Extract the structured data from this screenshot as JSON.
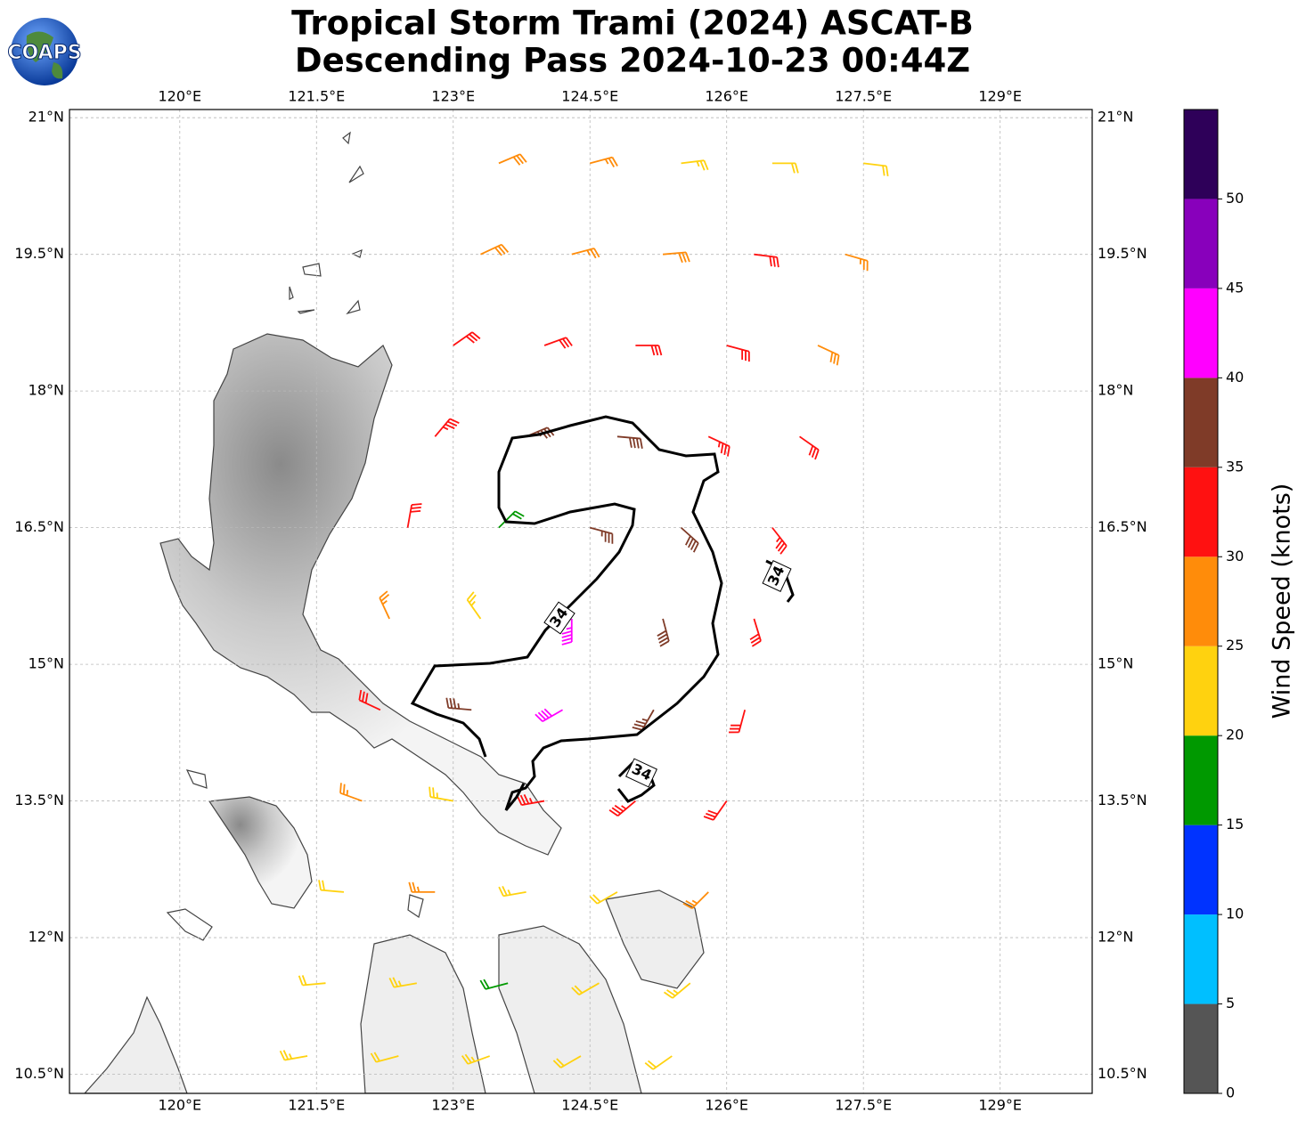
{
  "chart_data": {
    "type": "wind_barbs",
    "title": "Tropical Storm Trami (2024) ASCAT-B",
    "subtitle": "Descending Pass 2024-10-23 00:44Z",
    "logo": "COAPS",
    "xlim": [
      118.79,
      130.01
    ],
    "ylim": [
      10.29,
      21.09
    ],
    "xticks": [
      {
        "value": 120,
        "label": "120°E"
      },
      {
        "value": 121.5,
        "label": "121.5°E"
      },
      {
        "value": 123,
        "label": "123°E"
      },
      {
        "value": 124.5,
        "label": "124.5°E"
      },
      {
        "value": 126,
        "label": "126°E"
      },
      {
        "value": 127.5,
        "label": "127.5°E"
      },
      {
        "value": 129,
        "label": "129°E"
      }
    ],
    "yticks": [
      {
        "value": 10.5,
        "label": "10.5°N"
      },
      {
        "value": 12,
        "label": "12°N"
      },
      {
        "value": 13.5,
        "label": "13.5°N"
      },
      {
        "value": 15,
        "label": "15°N"
      },
      {
        "value": 16.5,
        "label": "16.5°N"
      },
      {
        "value": 18,
        "label": "18°N"
      },
      {
        "value": 19.5,
        "label": "19.5°N"
      },
      {
        "value": 21,
        "label": "21°N"
      }
    ],
    "grid": true,
    "contour_level": 34,
    "lon": [
      123.5,
      124.5,
      125.5,
      126.5,
      127.5,
      123.3,
      124.3,
      125.3,
      126.3,
      127.3,
      123.0,
      124.0,
      125.0,
      126.0,
      127.0,
      122.8,
      123.8,
      124.8,
      125.8,
      126.8,
      122.5,
      123.5,
      124.5,
      125.5,
      126.5,
      122.3,
      123.3,
      124.3,
      125.3,
      126.3,
      122.2,
      123.2,
      124.2,
      125.2,
      126.2,
      122.0,
      123.0,
      124.0,
      125.0,
      126.0,
      121.8,
      122.8,
      123.8,
      124.8,
      125.8,
      121.6,
      122.6,
      123.6,
      124.6,
      125.6,
      121.4,
      122.4,
      123.4,
      124.4,
      125.4
    ],
    "lat": [
      20.5,
      20.5,
      20.5,
      20.5,
      20.5,
      19.5,
      19.5,
      19.5,
      19.5,
      19.5,
      18.5,
      18.5,
      18.5,
      18.5,
      18.5,
      17.5,
      17.5,
      17.5,
      17.5,
      17.5,
      16.5,
      16.5,
      16.5,
      16.5,
      16.5,
      15.5,
      15.5,
      15.5,
      15.5,
      15.5,
      14.5,
      14.5,
      14.5,
      14.5,
      14.5,
      13.5,
      13.5,
      13.5,
      13.5,
      13.5,
      12.5,
      12.5,
      12.5,
      12.5,
      12.5,
      11.5,
      11.5,
      11.5,
      11.5,
      11.5,
      10.7,
      10.7,
      10.7,
      10.7,
      10.7
    ],
    "speed": [
      28,
      26,
      24,
      22,
      22,
      28,
      27,
      28,
      30,
      27,
      30,
      30,
      31,
      31,
      28,
      33,
      37,
      38,
      34,
      30,
      32,
      18,
      37,
      38,
      33,
      27,
      24,
      43,
      38,
      32,
      30,
      36,
      42,
      37,
      32,
      25,
      24,
      33,
      33,
      30,
      22,
      27,
      24,
      20,
      27,
      22,
      23,
      18,
      22,
      24,
      23,
      22,
      24,
      22,
      22
    ],
    "direction": [
      67,
      75,
      83,
      90,
      97,
      65,
      75,
      85,
      97,
      106,
      55,
      70,
      90,
      105,
      115,
      40,
      67,
      95,
      115,
      125,
      10,
      45,
      105,
      132,
      142,
      335,
      325,
      180,
      165,
      163,
      295,
      275,
      240,
      210,
      195,
      290,
      280,
      260,
      230,
      215,
      275,
      270,
      260,
      240,
      225,
      265,
      260,
      255,
      240,
      230,
      260,
      255,
      250,
      240,
      235
    ],
    "colorbar": {
      "label": "Wind Speed (knots)",
      "clim": [
        0,
        55
      ],
      "bounds": [
        0,
        5,
        10,
        15,
        20,
        25,
        30,
        35,
        40,
        45,
        50,
        55
      ],
      "colors": [
        "#555555",
        "#00bfff",
        "#0033ff",
        "#009900",
        "#ffd20f",
        "#ff8c0a",
        "#ff1111",
        "#7f3b28",
        "#ff00ff",
        "#8800bb",
        "#2e0059"
      ],
      "ticks": [
        0,
        5,
        10,
        15,
        20,
        25,
        30,
        35,
        40,
        45,
        50
      ]
    }
  }
}
